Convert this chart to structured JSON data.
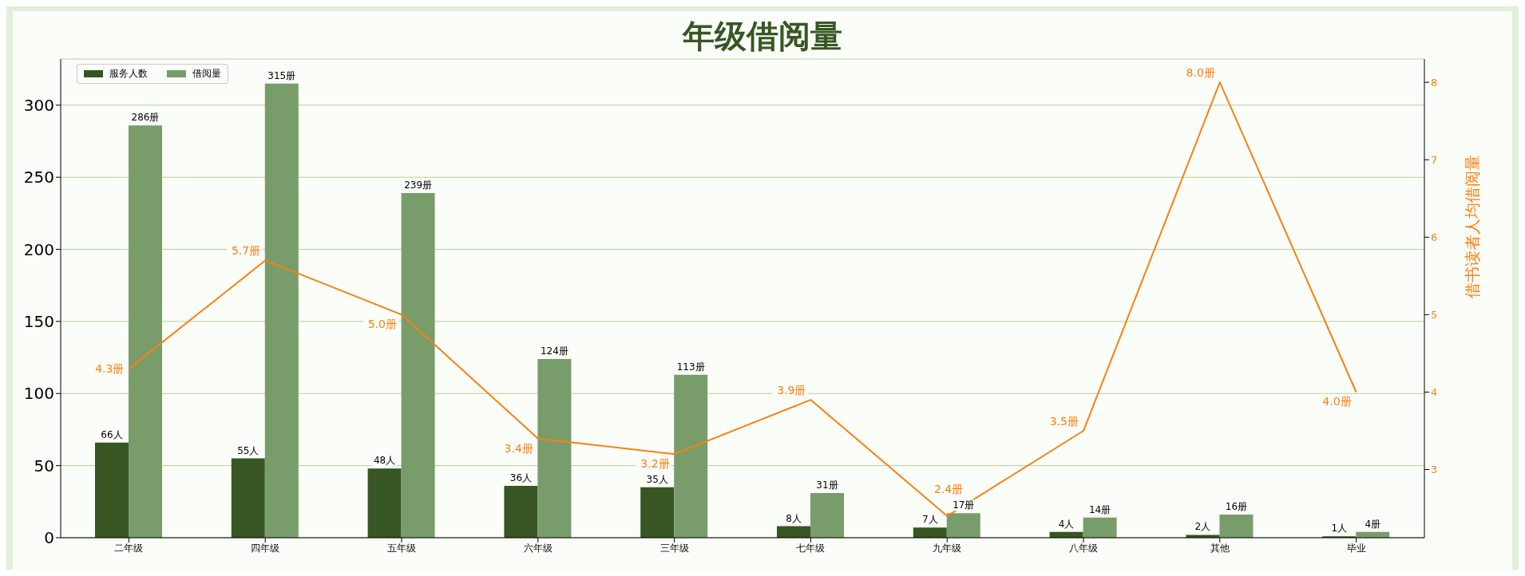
{
  "chart_data": {
    "type": "bar",
    "title": "年级借阅量",
    "y2label": "借书读者人均借阅量",
    "categories": [
      "二年级",
      "四年级",
      "五年级",
      "六年级",
      "三年级",
      "七年级",
      "九年级",
      "八年级",
      "其他",
      "毕业"
    ],
    "series": [
      {
        "name": "服务人数",
        "color": "#375623",
        "values": [
          66,
          55,
          48,
          36,
          35,
          8,
          7,
          4,
          2,
          1
        ],
        "value_labels": [
          "66人",
          "55人",
          "48人",
          "36人",
          "35人",
          "8人",
          "7人",
          "4人",
          "2人",
          "1人"
        ]
      },
      {
        "name": "借阅量",
        "color": "#789d6a",
        "values": [
          286,
          315,
          239,
          124,
          113,
          31,
          17,
          14,
          16,
          4
        ],
        "value_labels": [
          "286册",
          "315册",
          "239册",
          "124册",
          "113册",
          "31册",
          "17册",
          "14册",
          "16册",
          "4册"
        ]
      },
      {
        "type": "line",
        "axis": "y2",
        "color": "#ff7f0e",
        "values": [
          4.3,
          5.7,
          5.0,
          3.4,
          3.2,
          3.9,
          2.4,
          3.5,
          8.0,
          4.0
        ],
        "value_labels": [
          "4.3册",
          "5.7册",
          "5.0册",
          "3.4册",
          "3.2册",
          "3.9册",
          "2.4册",
          "3.5册",
          "8.0册",
          "4.0册"
        ]
      }
    ],
    "ylim": [
      0,
      332
    ],
    "yticks": [
      0,
      50,
      100,
      150,
      200,
      250,
      300
    ],
    "y2lim": [
      2.12,
      8.3
    ],
    "y2ticks": [
      3,
      4,
      5,
      6,
      7,
      8
    ],
    "grid": "y",
    "legend": "top left"
  }
}
